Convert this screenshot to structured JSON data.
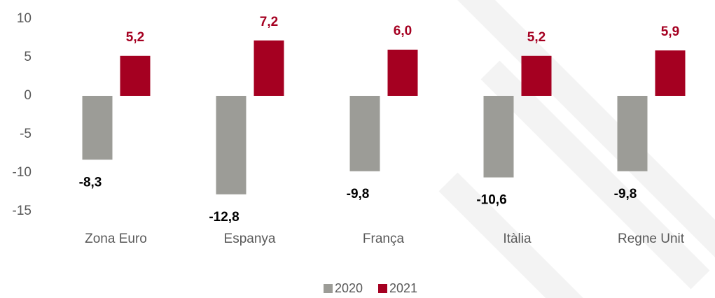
{
  "chart_data": {
    "type": "bar",
    "categories": [
      "Zona Euro",
      "Espanya",
      "França",
      "Itàlia",
      "Regne Unit"
    ],
    "series": [
      {
        "name": "2020",
        "color": "#9c9c97",
        "values": [
          -8.3,
          -12.8,
          -9.8,
          -10.6,
          -9.8
        ],
        "value_labels": [
          "-8,3",
          "-12,8",
          "-9,8",
          "-10,6",
          "-9,8"
        ]
      },
      {
        "name": "2021",
        "color": "#a50021",
        "values": [
          5.2,
          7.2,
          6.0,
          5.2,
          5.9
        ],
        "value_labels": [
          "5,2",
          "7,2",
          "6,0",
          "5,2",
          "5,9"
        ]
      }
    ],
    "ylim": [
      -15,
      10
    ],
    "yticks": [
      -15,
      -10,
      -5,
      0,
      5,
      10
    ],
    "grid": false,
    "legend": "bottom"
  }
}
